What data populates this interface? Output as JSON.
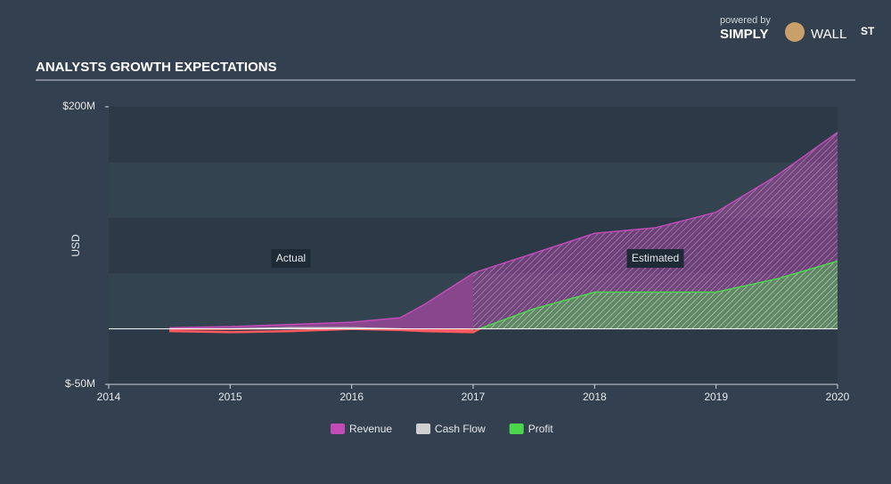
{
  "header": {
    "title": "ANALYSTS GROWTH EXPECTATIONS"
  },
  "logo": {
    "powered_by": "powered by",
    "simply": "SIMPLY",
    "wall": "WALL",
    "st": "ST"
  },
  "chart_data": {
    "type": "area",
    "ylabel": "USD",
    "x": [
      2014.5,
      2015,
      2015.5,
      2016,
      2016.4,
      2016.6,
      2017,
      2017.05,
      2017.5,
      2018,
      2018.5,
      2019,
      2019.5,
      2020
    ],
    "series": [
      {
        "name": "Revenue",
        "color": "#c24bb8",
        "values": [
          1,
          2,
          4,
          6,
          10,
          22,
          50,
          52,
          68,
          86,
          91,
          105,
          138,
          177
        ]
      },
      {
        "name": "Cash Flow",
        "color": "#d0d0d0",
        "values": [
          0,
          0,
          1,
          1,
          0,
          -1,
          -1,
          null,
          null,
          null,
          null,
          null,
          null,
          null
        ]
      },
      {
        "name": "Profit",
        "color": "#4cd64c",
        "values": [
          -2,
          -3,
          -2,
          0,
          -1,
          -2,
          -3,
          0,
          18,
          33,
          33,
          33,
          45,
          61
        ]
      }
    ],
    "negative_color": "#ff5a5f",
    "xlim": [
      2014,
      2020
    ],
    "xticks": [
      2014,
      2015,
      2016,
      2017,
      2018,
      2019,
      2020
    ],
    "ylim": [
      -50,
      200
    ],
    "yticks": [
      {
        "value": 200,
        "label": "$200M"
      },
      {
        "value": -50,
        "label": "$-50M"
      }
    ],
    "band_step": 50,
    "forecast_start": 2017,
    "region_labels": [
      "Actual",
      "Estimated"
    ]
  }
}
